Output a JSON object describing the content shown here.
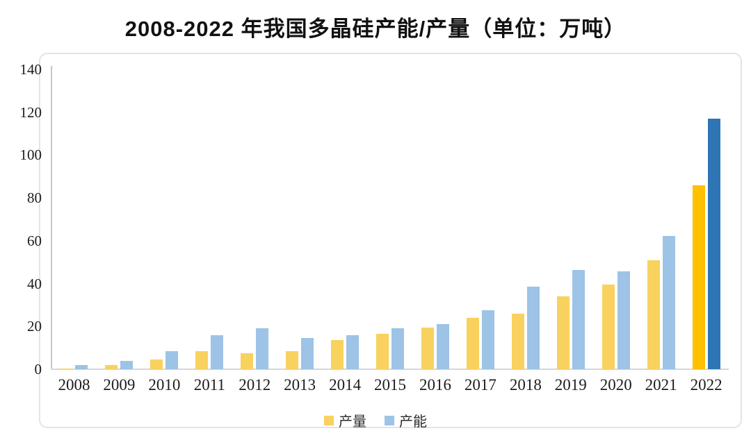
{
  "title": "2008-2022 年我国多晶硅产能/产量（单位：万吨）",
  "chart_data": {
    "type": "bar",
    "title": "2008-2022 年我国多晶硅产能/产量（单位：万吨）",
    "unit": "万吨",
    "categories": [
      "2008",
      "2009",
      "2010",
      "2011",
      "2012",
      "2013",
      "2014",
      "2015",
      "2016",
      "2017",
      "2018",
      "2019",
      "2020",
      "2021",
      "2022"
    ],
    "series": [
      {
        "name": "产量",
        "color": "#F9D15F",
        "highlight_color": "#FFC000",
        "values": [
          0.4,
          2,
          4.5,
          8.3,
          7.5,
          8.3,
          13.6,
          16.5,
          19.5,
          24,
          26,
          34,
          39.6,
          51,
          86
        ]
      },
      {
        "name": "产能",
        "color": "#9DC3E6",
        "highlight_color": "#2E75B6",
        "values": [
          1.8,
          4,
          8.5,
          16,
          19,
          14.5,
          15.8,
          19,
          21,
          27.5,
          38.5,
          46.5,
          45.8,
          62.3,
          117
        ]
      }
    ],
    "highlight_index": 14,
    "ylim": [
      0,
      140
    ],
    "yticks": [
      0,
      20,
      40,
      60,
      80,
      100,
      120,
      140
    ],
    "xlabel": "",
    "ylabel": "",
    "grid": false,
    "legend_position": "bottom",
    "legend": [
      "产量",
      "产能"
    ],
    "axis_color": "#c6c6c6",
    "frame_color": "#e4e4e4"
  }
}
